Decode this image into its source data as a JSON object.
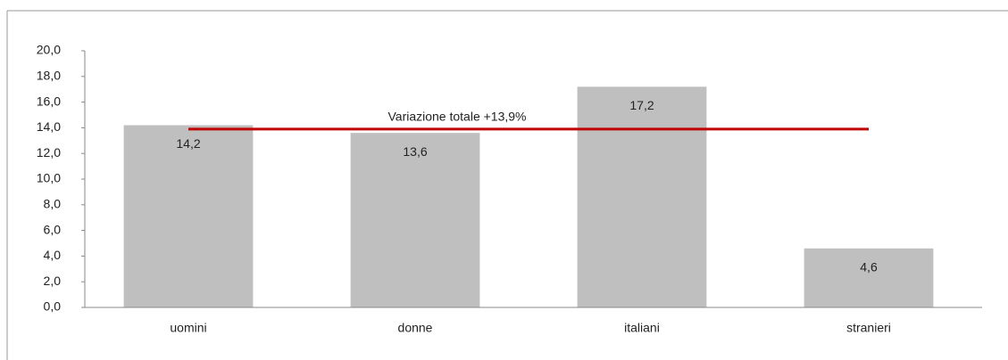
{
  "chart_data": {
    "type": "bar",
    "categories": [
      "uomini",
      "donne",
      "italiani",
      "stranieri"
    ],
    "values": [
      14.2,
      13.6,
      17.2,
      4.6
    ],
    "value_labels": [
      "14,2",
      "13,6",
      "17,2",
      "4,6"
    ],
    "color": "#bfbfbf",
    "ylim": [
      0,
      20
    ],
    "yticks": [
      {
        "value": 0,
        "label": "0,0"
      },
      {
        "value": 2,
        "label": "2,0"
      },
      {
        "value": 4,
        "label": "4,0"
      },
      {
        "value": 6,
        "label": "6,0"
      },
      {
        "value": 8,
        "label": "8,0"
      },
      {
        "value": 10,
        "label": "10,0"
      },
      {
        "value": 12,
        "label": "12,0"
      },
      {
        "value": 14,
        "label": "14,0"
      },
      {
        "value": 16,
        "label": "16,0"
      },
      {
        "value": 18,
        "label": "18,0"
      },
      {
        "value": 20,
        "label": "20,0"
      }
    ],
    "reference_line": {
      "value": 13.9,
      "label": "Variazione totale  +13,9%",
      "color": "#c00000"
    }
  }
}
